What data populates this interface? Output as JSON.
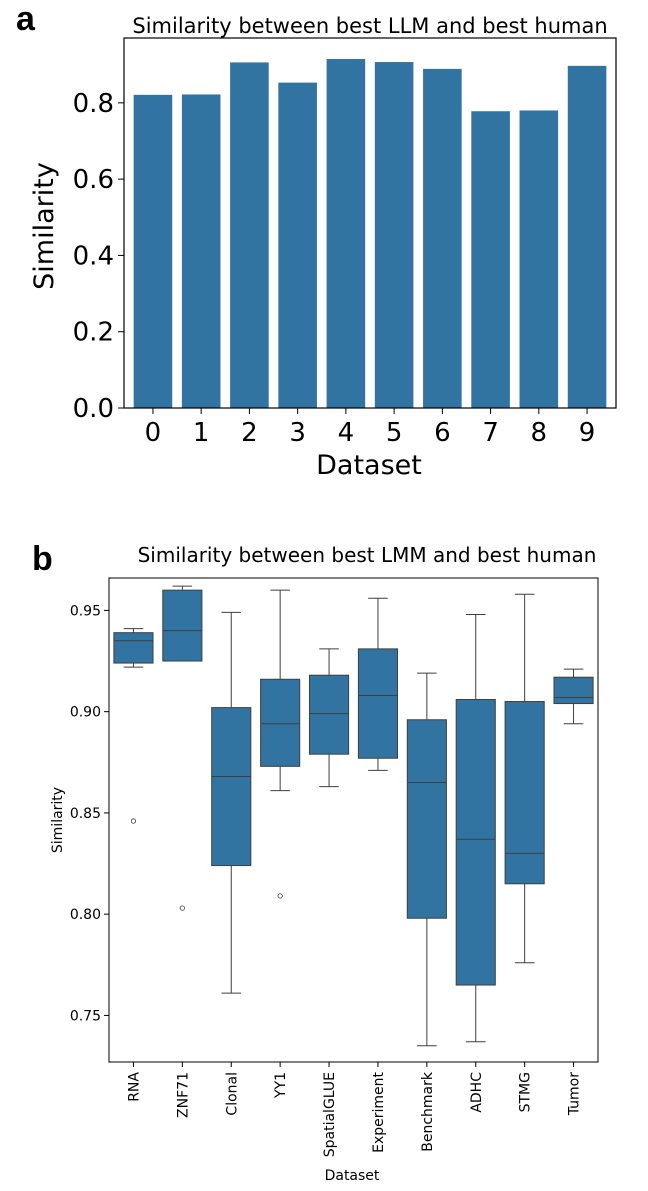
{
  "chart_data": [
    {
      "panel": "a",
      "type": "bar",
      "title": "Similarity between best LLM and best human",
      "xlabel": "Dataset",
      "ylabel": "Similarity",
      "categories": [
        "0",
        "1",
        "2",
        "3",
        "4",
        "5",
        "6",
        "7",
        "8",
        "9"
      ],
      "values": [
        0.821,
        0.822,
        0.906,
        0.853,
        0.915,
        0.907,
        0.889,
        0.778,
        0.78,
        0.897
      ],
      "ylim": [
        0,
        0.97
      ],
      "yticks": [
        0.0,
        0.2,
        0.4,
        0.6,
        0.8
      ],
      "ytick_labels": [
        "0.0",
        "0.2",
        "0.4",
        "0.6",
        "0.8"
      ],
      "color": "#3274a1",
      "grid": false
    },
    {
      "panel": "b",
      "type": "box",
      "title": "Similarity between best LMM and best human",
      "xlabel": "Dataset",
      "ylabel": "Similarity",
      "ylim": [
        0.727,
        0.966
      ],
      "yticks": [
        0.75,
        0.8,
        0.85,
        0.9,
        0.95
      ],
      "ytick_labels": [
        "0.75",
        "0.80",
        "0.85",
        "0.90",
        "0.95"
      ],
      "color": "#3274a1",
      "grid": false,
      "boxes": [
        {
          "name": "RNA",
          "min": 0.922,
          "q1": 0.924,
          "median": 0.935,
          "q3": 0.939,
          "max": 0.941,
          "outliers": [
            0.846
          ]
        },
        {
          "name": "ZNF71",
          "min": 0.925,
          "q1": 0.925,
          "median": 0.94,
          "q3": 0.96,
          "max": 0.962,
          "outliers": [
            0.803
          ]
        },
        {
          "name": "Clonal",
          "min": 0.761,
          "q1": 0.824,
          "median": 0.868,
          "q3": 0.902,
          "max": 0.949,
          "outliers": []
        },
        {
          "name": "YY1",
          "min": 0.861,
          "q1": 0.873,
          "median": 0.894,
          "q3": 0.916,
          "max": 0.96,
          "outliers": [
            0.809
          ]
        },
        {
          "name": "SpatialGLUE",
          "min": 0.863,
          "q1": 0.879,
          "median": 0.899,
          "q3": 0.918,
          "max": 0.931,
          "outliers": []
        },
        {
          "name": "Experiment",
          "min": 0.871,
          "q1": 0.877,
          "median": 0.908,
          "q3": 0.931,
          "max": 0.956,
          "outliers": []
        },
        {
          "name": "Benchmark",
          "min": 0.735,
          "q1": 0.798,
          "median": 0.865,
          "q3": 0.896,
          "max": 0.919,
          "outliers": []
        },
        {
          "name": "ADHC",
          "min": 0.737,
          "q1": 0.765,
          "median": 0.837,
          "q3": 0.906,
          "max": 0.948,
          "outliers": []
        },
        {
          "name": "STMG",
          "min": 0.776,
          "q1": 0.815,
          "median": 0.83,
          "q3": 0.905,
          "max": 0.958,
          "outliers": []
        },
        {
          "name": "Tumor",
          "min": 0.894,
          "q1": 0.904,
          "median": 0.907,
          "q3": 0.917,
          "max": 0.921,
          "outliers": []
        }
      ]
    }
  ]
}
